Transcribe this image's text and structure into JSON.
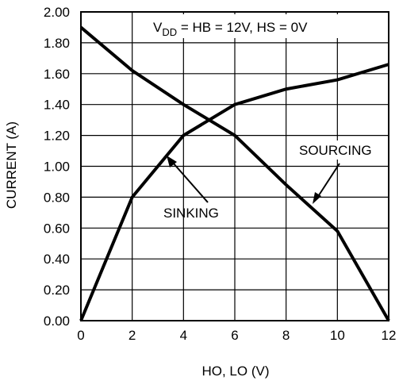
{
  "chart_data": {
    "type": "line",
    "xlabel": "HO, LO (V)",
    "ylabel": "CURRENT (A)",
    "xlim": [
      0,
      12
    ],
    "ylim": [
      0,
      2.0
    ],
    "x_ticks": [
      0,
      2,
      4,
      6,
      8,
      10,
      12
    ],
    "y_ticks": [
      0.0,
      0.2,
      0.4,
      0.6,
      0.8,
      1.0,
      1.2,
      1.4,
      1.6,
      1.8,
      2.0
    ],
    "x_tick_labels": [
      "0",
      "2",
      "4",
      "6",
      "8",
      "10",
      "12"
    ],
    "y_tick_labels": [
      "0.00",
      "0.20",
      "0.40",
      "0.60",
      "0.80",
      "1.00",
      "1.20",
      "1.40",
      "1.60",
      "1.80",
      "2.00"
    ],
    "grid": true,
    "annotation": {
      "condition_prefix": "V",
      "condition_subscript": "DD",
      "condition_rest": " = HB = 12V, HS = 0V"
    },
    "series": [
      {
        "name": "SINKING",
        "points": [
          {
            "x": 0,
            "y": 0.0
          },
          {
            "x": 2,
            "y": 0.8
          },
          {
            "x": 4,
            "y": 1.2
          },
          {
            "x": 6,
            "y": 1.4
          },
          {
            "x": 8,
            "y": 1.5
          },
          {
            "x": 10,
            "y": 1.56
          },
          {
            "x": 12,
            "y": 1.66
          }
        ]
      },
      {
        "name": "SOURCING",
        "points": [
          {
            "x": 0,
            "y": 1.9
          },
          {
            "x": 2,
            "y": 1.62
          },
          {
            "x": 4,
            "y": 1.4
          },
          {
            "x": 6,
            "y": 1.2
          },
          {
            "x": 8,
            "y": 0.88
          },
          {
            "x": 10,
            "y": 0.58
          },
          {
            "x": 12,
            "y": 0.0
          }
        ]
      }
    ]
  }
}
